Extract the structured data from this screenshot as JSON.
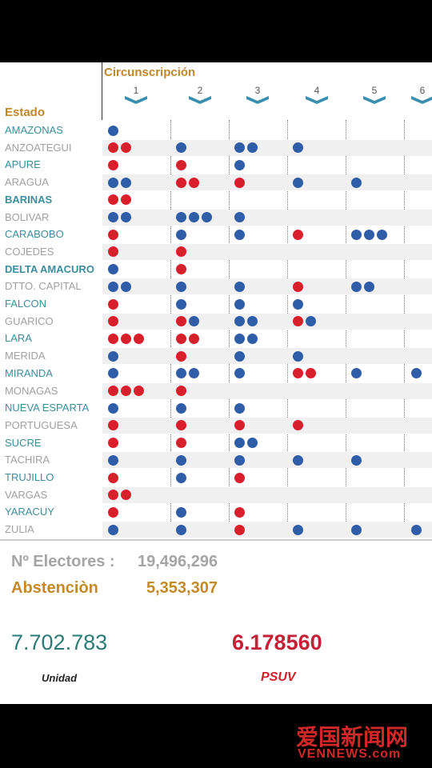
{
  "header": {
    "group_label": "Circunscripción",
    "row_label": "Estado",
    "columns": [
      "1",
      "2",
      "3",
      "4",
      "5",
      "6"
    ]
  },
  "rows": [
    {
      "state": "AMAZONAS",
      "seats": [
        [
          "#2f5da8"
        ],
        [],
        [],
        [],
        [],
        []
      ]
    },
    {
      "state": "ANZOATEGUI",
      "seats": [
        [
          "#d8202c",
          "#d8202c"
        ],
        [
          "#2f5da8"
        ],
        [
          "#2f5da8",
          "#2f5da8"
        ],
        [
          "#2f5da8"
        ],
        [],
        []
      ]
    },
    {
      "state": "APURE",
      "seats": [
        [
          "#d8202c"
        ],
        [
          "#d8202c"
        ],
        [
          "#2f5da8"
        ],
        [],
        [],
        []
      ]
    },
    {
      "state": "ARAGUA",
      "seats": [
        [
          "#2f5da8",
          "#2f5da8"
        ],
        [
          "#d8202c",
          "#d8202c"
        ],
        [
          "#d8202c"
        ],
        [
          "#2f5da8"
        ],
        [
          "#2f5da8"
        ],
        []
      ]
    },
    {
      "state": "BARINAS",
      "seats": [
        [
          "#d8202c",
          "#d8202c"
        ],
        [],
        [],
        [],
        [],
        []
      ]
    },
    {
      "state": "BOLIVAR",
      "seats": [
        [
          "#2f5da8",
          "#2f5da8"
        ],
        [
          "#2f5da8",
          "#2f5da8",
          "#2f5da8"
        ],
        [
          "#2f5da8"
        ],
        [],
        [],
        []
      ]
    },
    {
      "state": "CARABOBO",
      "seats": [
        [
          "#d8202c"
        ],
        [
          "#2f5da8"
        ],
        [
          "#2f5da8"
        ],
        [
          "#d8202c"
        ],
        [
          "#2f5da8",
          "#2f5da8",
          "#2f5da8"
        ],
        []
      ]
    },
    {
      "state": "COJEDES",
      "seats": [
        [
          "#d8202c"
        ],
        [
          "#d8202c"
        ],
        [],
        [],
        [],
        []
      ]
    },
    {
      "state": "DELTA AMACURO",
      "seats": [
        [
          "#2f5da8"
        ],
        [
          "#d8202c"
        ],
        [],
        [],
        [],
        []
      ]
    },
    {
      "state": "DTTO. CAPITAL",
      "seats": [
        [
          "#2f5da8",
          "#2f5da8"
        ],
        [
          "#2f5da8"
        ],
        [
          "#2f5da8"
        ],
        [
          "#d8202c"
        ],
        [
          "#2f5da8",
          "#2f5da8"
        ],
        []
      ]
    },
    {
      "state": "FALCON",
      "seats": [
        [
          "#d8202c"
        ],
        [
          "#2f5da8"
        ],
        [
          "#2f5da8"
        ],
        [
          "#2f5da8"
        ],
        [],
        []
      ]
    },
    {
      "state": "GUARICO",
      "seats": [
        [
          "#d8202c"
        ],
        [
          "#d8202c",
          "#2f5da8"
        ],
        [
          "#2f5da8",
          "#2f5da8"
        ],
        [
          "#d8202c",
          "#2f5da8"
        ],
        [],
        []
      ]
    },
    {
      "state": "LARA",
      "seats": [
        [
          "#d8202c",
          "#d8202c",
          "#d8202c"
        ],
        [
          "#d8202c",
          "#d8202c"
        ],
        [
          "#2f5da8",
          "#2f5da8"
        ],
        [],
        [],
        []
      ]
    },
    {
      "state": "MERIDA",
      "seats": [
        [
          "#2f5da8"
        ],
        [
          "#d8202c"
        ],
        [
          "#2f5da8"
        ],
        [
          "#2f5da8"
        ],
        [],
        []
      ]
    },
    {
      "state": "MIRANDA",
      "seats": [
        [
          "#2f5da8"
        ],
        [
          "#2f5da8",
          "#2f5da8"
        ],
        [
          "#2f5da8"
        ],
        [
          "#d8202c",
          "#d8202c"
        ],
        [
          "#2f5da8"
        ],
        [
          "#2f5da8"
        ]
      ]
    },
    {
      "state": "MONAGAS",
      "seats": [
        [
          "#d8202c",
          "#d8202c",
          "#d8202c"
        ],
        [
          "#d8202c"
        ],
        [],
        [],
        [],
        []
      ]
    },
    {
      "state": "NUEVA ESPARTA",
      "seats": [
        [
          "#2f5da8"
        ],
        [
          "#2f5da8"
        ],
        [
          "#2f5da8"
        ],
        [],
        [],
        []
      ]
    },
    {
      "state": "PORTUGUESA",
      "seats": [
        [
          "#d8202c"
        ],
        [
          "#d8202c"
        ],
        [
          "#d8202c"
        ],
        [
          "#d8202c"
        ],
        [],
        []
      ]
    },
    {
      "state": "SUCRE",
      "seats": [
        [
          "#d8202c"
        ],
        [
          "#d8202c"
        ],
        [
          "#2f5da8",
          "#2f5da8"
        ],
        [],
        [],
        []
      ]
    },
    {
      "state": "TACHIRA",
      "seats": [
        [
          "#2f5da8"
        ],
        [
          "#2f5da8"
        ],
        [
          "#2f5da8"
        ],
        [
          "#2f5da8"
        ],
        [
          "#2f5da8"
        ],
        []
      ]
    },
    {
      "state": "TRUJILLO",
      "seats": [
        [
          "#d8202c"
        ],
        [
          "#2f5da8"
        ],
        [
          "#d8202c"
        ],
        [],
        [],
        []
      ]
    },
    {
      "state": "VARGAS",
      "seats": [
        [
          "#d8202c",
          "#d8202c"
        ],
        [],
        [],
        [],
        [],
        []
      ]
    },
    {
      "state": "YARACUY",
      "seats": [
        [
          "#d8202c"
        ],
        [
          "#2f5da8"
        ],
        [
          "#d8202c"
        ],
        [],
        [],
        []
      ]
    },
    {
      "state": "ZULIA",
      "seats": [
        [
          "#2f5da8"
        ],
        [
          "#2f5da8"
        ],
        [
          "#d8202c"
        ],
        [
          "#2f5da8"
        ],
        [
          "#2f5da8"
        ],
        [
          "#2f5da8"
        ]
      ]
    }
  ],
  "summary": {
    "electores_label": "Nº Electores :",
    "electores": "19,496,296",
    "abstencion_label": "Abstenciòn",
    "abstencion": "5,353,307",
    "unidad_votes": "7.702.783",
    "psuv_votes": "6.178560",
    "unidad_logo": "Unidad",
    "psuv_logo": "PSUV"
  },
  "watermark": {
    "title": "爱国新闻网",
    "site": "VENNEWS.com"
  }
}
